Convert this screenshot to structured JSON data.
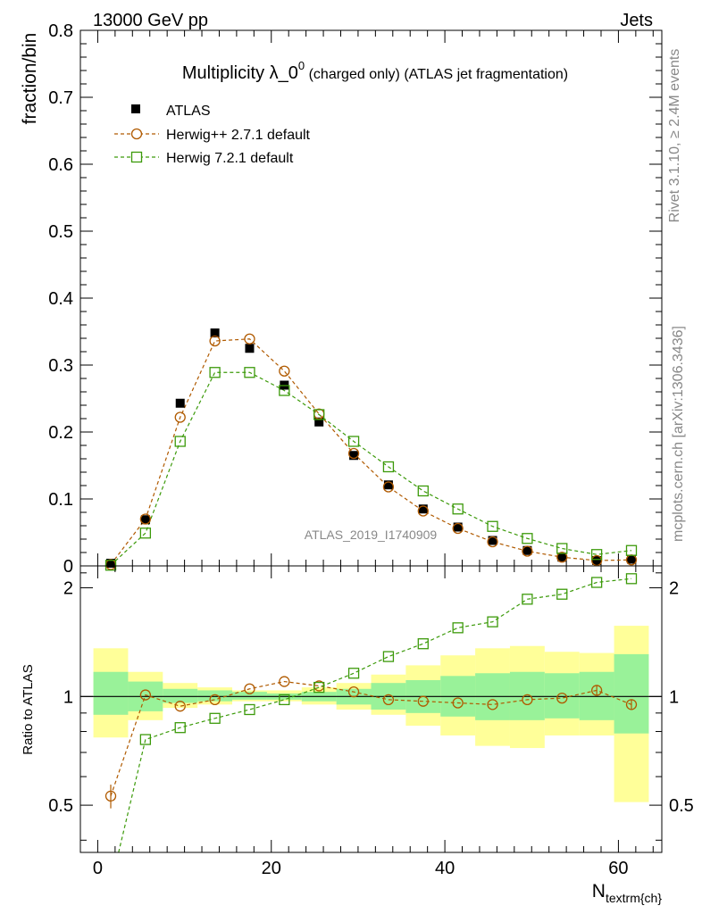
{
  "header": {
    "left": "13000 GeV pp",
    "right": "Jets"
  },
  "side_text": {
    "rivet": "Rivet 3.1.10, ≥ 2.4M events",
    "mcplots": "mcplots.cern.ch [arXiv:1306.3436]"
  },
  "chart_data": [
    {
      "type": "scatter",
      "panel": "main",
      "title": "Multiplicity λ_0",
      "title_sup": "0",
      "title_suffix": " (charged only) (ATLAS jet fragmentation)",
      "ylabel": "fraction/bin",
      "xlabel_main": "N",
      "xlabel_sub": "textrm{ch}",
      "analysis_label": "ATLAS_2019_I1740909",
      "xlim": [
        -2,
        65
      ],
      "ylim": [
        0,
        0.8
      ],
      "yticks": [
        "0",
        "0.1",
        "0.2",
        "0.3",
        "0.4",
        "0.5",
        "0.6",
        "0.7",
        "0.8"
      ],
      "grid": false,
      "legend_position": "top-left",
      "x": [
        1.5,
        5.5,
        9.5,
        13.5,
        17.5,
        21.5,
        25.5,
        29.5,
        33.5,
        37.5,
        41.5,
        45.5,
        49.5,
        53.5,
        57.5,
        61.5
      ],
      "series": [
        {
          "name": "ATLAS",
          "color": "#000000",
          "marker": "filled-square",
          "values": [
            0.004,
            0.069,
            0.243,
            0.348,
            0.325,
            0.27,
            0.215,
            0.165,
            0.121,
            0.085,
            0.058,
            0.038,
            0.023,
            0.013,
            0.008,
            0.01
          ]
        },
        {
          "name": "Herwig++ 2.7.1 default",
          "color": "#b05a00",
          "marker": "open-circle",
          "values": [
            0.002,
            0.07,
            0.222,
            0.336,
            0.339,
            0.291,
            0.227,
            0.168,
            0.118,
            0.082,
            0.056,
            0.036,
            0.022,
            0.013,
            0.008,
            0.009
          ]
        },
        {
          "name": "Herwig 7.2.1 default",
          "color": "#3c9a0a",
          "marker": "open-square",
          "values": [
            0.001,
            0.049,
            0.186,
            0.289,
            0.289,
            0.262,
            0.226,
            0.186,
            0.148,
            0.112,
            0.085,
            0.059,
            0.041,
            0.026,
            0.017,
            0.023
          ]
        }
      ]
    },
    {
      "type": "scatter",
      "panel": "ratio",
      "ylabel": "Ratio to ATLAS",
      "xlim": [
        -2,
        65
      ],
      "ylim": [
        0.37,
        2.3
      ],
      "yticks": [
        "0.5",
        "1",
        "2"
      ],
      "xticks": [
        "0",
        "20",
        "40",
        "60"
      ],
      "grid": false,
      "x": [
        1.5,
        5.5,
        9.5,
        13.5,
        17.5,
        21.5,
        25.5,
        29.5,
        33.5,
        37.5,
        41.5,
        45.5,
        49.5,
        53.5,
        57.5,
        61.5
      ],
      "band_inner": [
        {
          "lo": 0.89,
          "hi": 1.17
        },
        {
          "lo": 0.91,
          "hi": 1.1
        },
        {
          "lo": 0.96,
          "hi": 1.05
        },
        {
          "lo": 0.97,
          "hi": 1.04
        },
        {
          "lo": 0.98,
          "hi": 1.03
        },
        {
          "lo": 0.98,
          "hi": 1.02
        },
        {
          "lo": 0.97,
          "hi": 1.03
        },
        {
          "lo": 0.95,
          "hi": 1.05
        },
        {
          "lo": 0.92,
          "hi": 1.09
        },
        {
          "lo": 0.9,
          "hi": 1.11
        },
        {
          "lo": 0.88,
          "hi": 1.14
        },
        {
          "lo": 0.86,
          "hi": 1.16
        },
        {
          "lo": 0.86,
          "hi": 1.17
        },
        {
          "lo": 0.87,
          "hi": 1.16
        },
        {
          "lo": 0.86,
          "hi": 1.17
        },
        {
          "lo": 0.79,
          "hi": 1.31
        }
      ],
      "band_outer": [
        {
          "lo": 0.77,
          "hi": 1.36
        },
        {
          "lo": 0.86,
          "hi": 1.17
        },
        {
          "lo": 0.93,
          "hi": 1.09
        },
        {
          "lo": 0.95,
          "hi": 1.06
        },
        {
          "lo": 0.97,
          "hi": 1.04
        },
        {
          "lo": 0.97,
          "hi": 1.04
        },
        {
          "lo": 0.95,
          "hi": 1.06
        },
        {
          "lo": 0.92,
          "hi": 1.09
        },
        {
          "lo": 0.89,
          "hi": 1.15
        },
        {
          "lo": 0.83,
          "hi": 1.22
        },
        {
          "lo": 0.78,
          "hi": 1.3
        },
        {
          "lo": 0.73,
          "hi": 1.36
        },
        {
          "lo": 0.72,
          "hi": 1.38
        },
        {
          "lo": 0.78,
          "hi": 1.33
        },
        {
          "lo": 0.78,
          "hi": 1.32
        },
        {
          "lo": 0.51,
          "hi": 1.57
        }
      ],
      "series": [
        {
          "name": "Herwig++ 2.7.1 default",
          "color": "#b05a00",
          "marker": "open-circle",
          "values": [
            0.53,
            1.01,
            0.94,
            0.98,
            1.05,
            1.1,
            1.07,
            1.03,
            0.98,
            0.97,
            0.96,
            0.95,
            0.98,
            0.99,
            1.04,
            0.95
          ]
        },
        {
          "name": "Herwig 7.2.1 default",
          "color": "#3c9a0a",
          "marker": "open-square",
          "values": [
            0.3,
            0.76,
            0.82,
            0.87,
            0.92,
            0.98,
            1.06,
            1.16,
            1.29,
            1.4,
            1.55,
            1.61,
            1.86,
            1.92,
            2.07,
            2.12
          ]
        }
      ]
    }
  ]
}
